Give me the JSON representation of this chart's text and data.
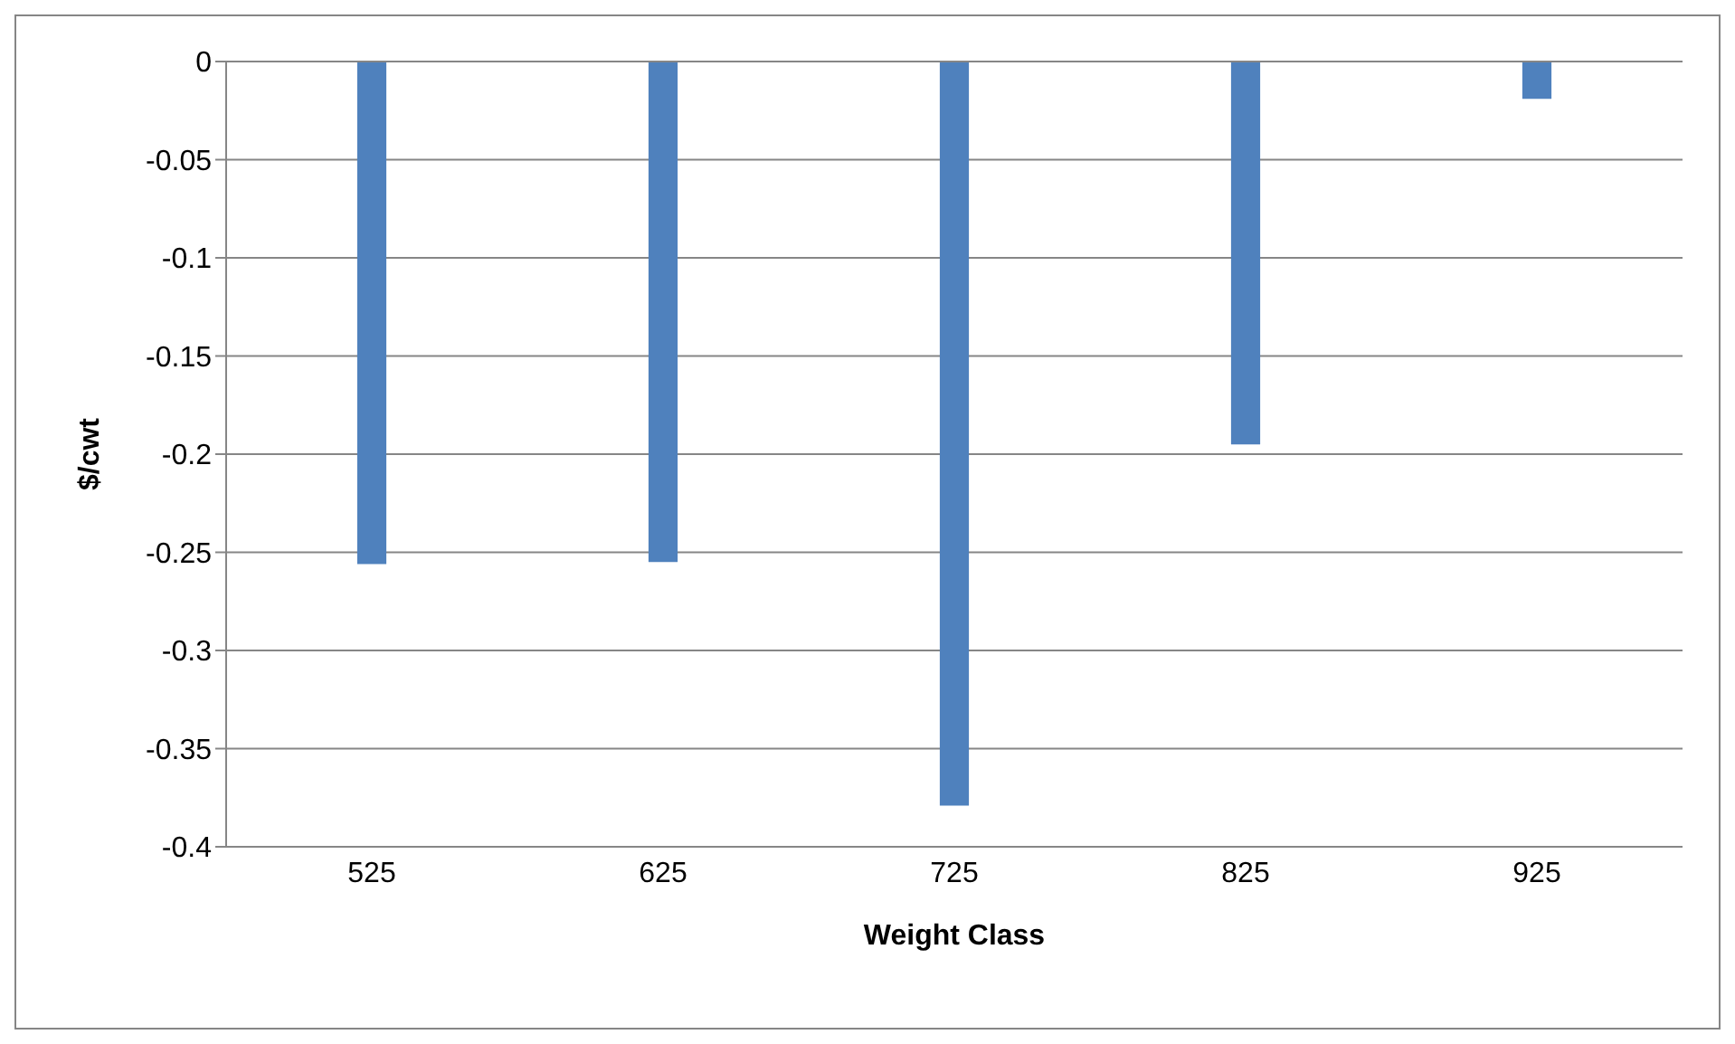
{
  "chart_data": {
    "type": "bar",
    "xlabel": "Weight Class",
    "ylabel": "$/cwt",
    "categories": [
      "525",
      "625",
      "725",
      "825",
      "925"
    ],
    "values": [
      -0.256,
      -0.255,
      -0.379,
      -0.195,
      -0.019
    ],
    "color": "#4f81bd",
    "ylim": [
      -0.4,
      0
    ],
    "yticks": [
      -0.4,
      -0.35,
      -0.3,
      -0.25,
      -0.2,
      -0.15,
      -0.1,
      -0.05,
      0
    ],
    "grid": "y",
    "legend": false
  }
}
